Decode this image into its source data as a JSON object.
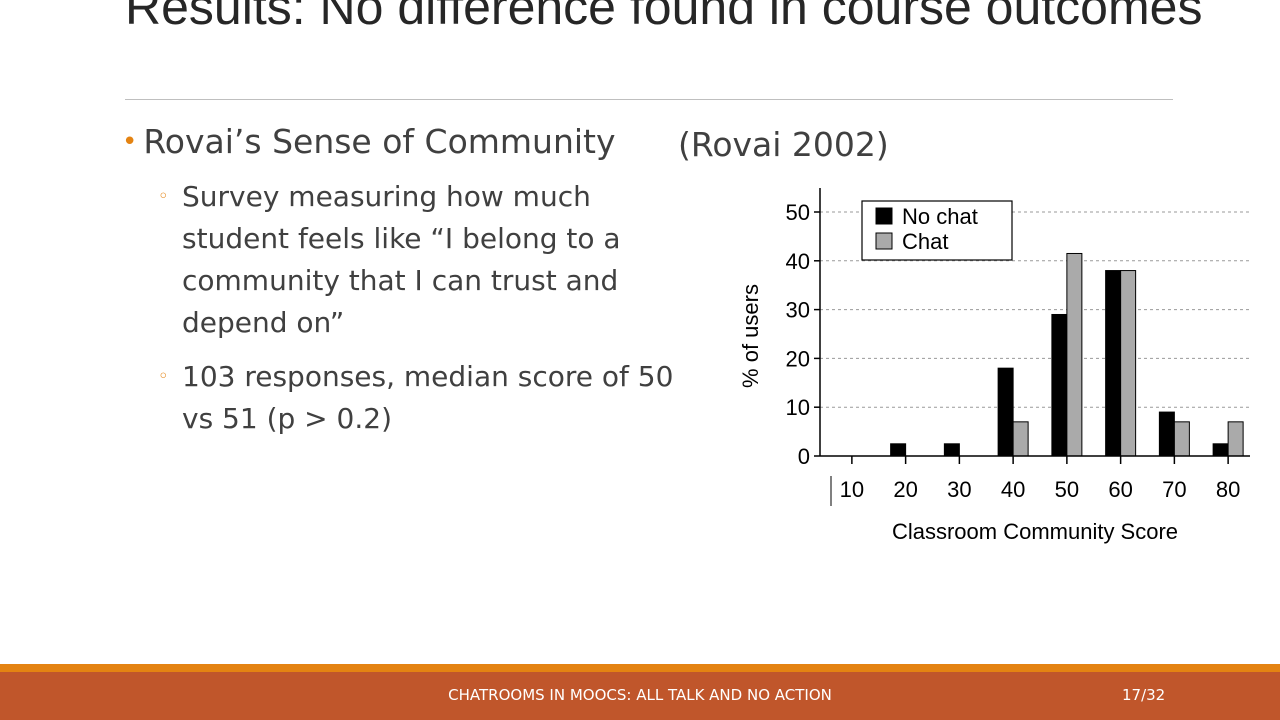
{
  "slide": {
    "title": "Results: No difference found in course outcomes",
    "bullet": "Rovai’s Sense of Community",
    "citation": "(Rovai 2002)",
    "sub_bullets": [
      "Survey measuring how much student feels like “I belong to a community that I can trust and depend on”",
      "103 responses, median score of 50 vs 51 (p > 0.2)"
    ],
    "footer": "CHATROOMS IN MOOCS: ALL TALK AND NO ACTION",
    "page": "17/32"
  },
  "colors": {
    "accent": "#e48312",
    "footer_band": "#c0562b",
    "series_no_chat": "#000000",
    "series_chat": "#aaaaaa"
  },
  "chart_data": {
    "type": "bar",
    "categories": [
      "10",
      "20",
      "30",
      "40",
      "50",
      "60",
      "70",
      "80"
    ],
    "series": [
      {
        "name": "No chat",
        "values": [
          0,
          2.5,
          2.5,
          18,
          29,
          38,
          9,
          2.5
        ]
      },
      {
        "name": "Chat",
        "values": [
          0,
          0,
          0,
          7,
          41.5,
          38,
          7,
          7
        ]
      }
    ],
    "title": "",
    "xlabel": "Classroom Community Score",
    "ylabel": "% of users",
    "ylim": [
      0,
      50
    ],
    "yticks": [
      "0",
      "10",
      "20",
      "30",
      "40",
      "50"
    ],
    "grid": true,
    "legend": "top-left"
  }
}
